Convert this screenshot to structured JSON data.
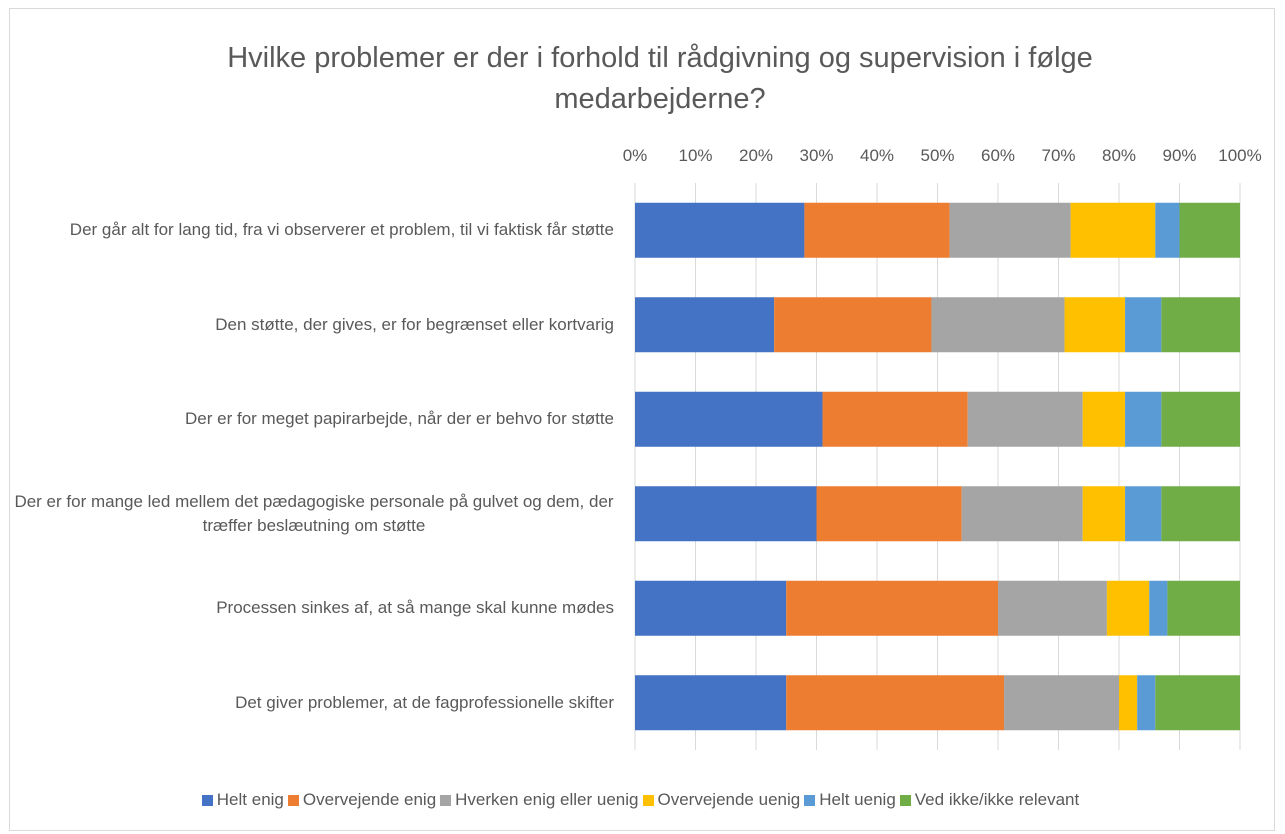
{
  "chart_data": {
    "type": "stacked-bar-horizontal",
    "title": "Hvilke problemer er der i forhold til rådgivning og supervision i følge medarbejderne?",
    "categories": [
      "Der går alt for lang tid, fra vi observerer et problem, til vi faktisk får støtte",
      "Den støtte, der gives, er for begrænset eller kortvarig",
      "Der er for meget papirarbejde, når der er behvo for støtte",
      "Der er for mange led mellem det pædagogiske personale på gulvet og dem, der træffer beslæutning om støtte",
      "Processen sinkes af, at så mange skal kunne mødes",
      "Det giver problemer, at de fagprofessionelle skifter"
    ],
    "series": [
      {
        "name": "Helt enig",
        "color": "#4472c4",
        "values": [
          28,
          23,
          31,
          30,
          25,
          25
        ]
      },
      {
        "name": "Overvejende enig",
        "color": "#ed7d31",
        "values": [
          24,
          26,
          24,
          24,
          35,
          36
        ]
      },
      {
        "name": "Hverken enig eller uenig",
        "color": "#a5a5a5",
        "values": [
          20,
          22,
          19,
          20,
          18,
          19
        ]
      },
      {
        "name": "Overvejende uenig",
        "color": "#ffc000",
        "values": [
          14,
          10,
          7,
          7,
          7,
          3
        ]
      },
      {
        "name": "Helt uenig",
        "color": "#5b9bd5",
        "values": [
          4,
          6,
          6,
          6,
          3,
          3
        ]
      },
      {
        "name": "Ved ikke/ikke relevant",
        "color": "#70ad47",
        "values": [
          10,
          13,
          13,
          13,
          12,
          14
        ]
      }
    ],
    "xlim": [
      0,
      100
    ],
    "xticks": [
      {
        "value": 0,
        "label": "0%"
      },
      {
        "value": 10,
        "label": "10%"
      },
      {
        "value": 20,
        "label": "20%"
      },
      {
        "value": 30,
        "label": "30%"
      },
      {
        "value": 40,
        "label": "40%"
      },
      {
        "value": 50,
        "label": "50%"
      },
      {
        "value": 60,
        "label": "60%"
      },
      {
        "value": 70,
        "label": "70%"
      },
      {
        "value": 80,
        "label": "80%"
      },
      {
        "value": 90,
        "label": "90%"
      },
      {
        "value": 100,
        "label": "100%"
      }
    ],
    "grid": true,
    "legend": "bottom"
  }
}
